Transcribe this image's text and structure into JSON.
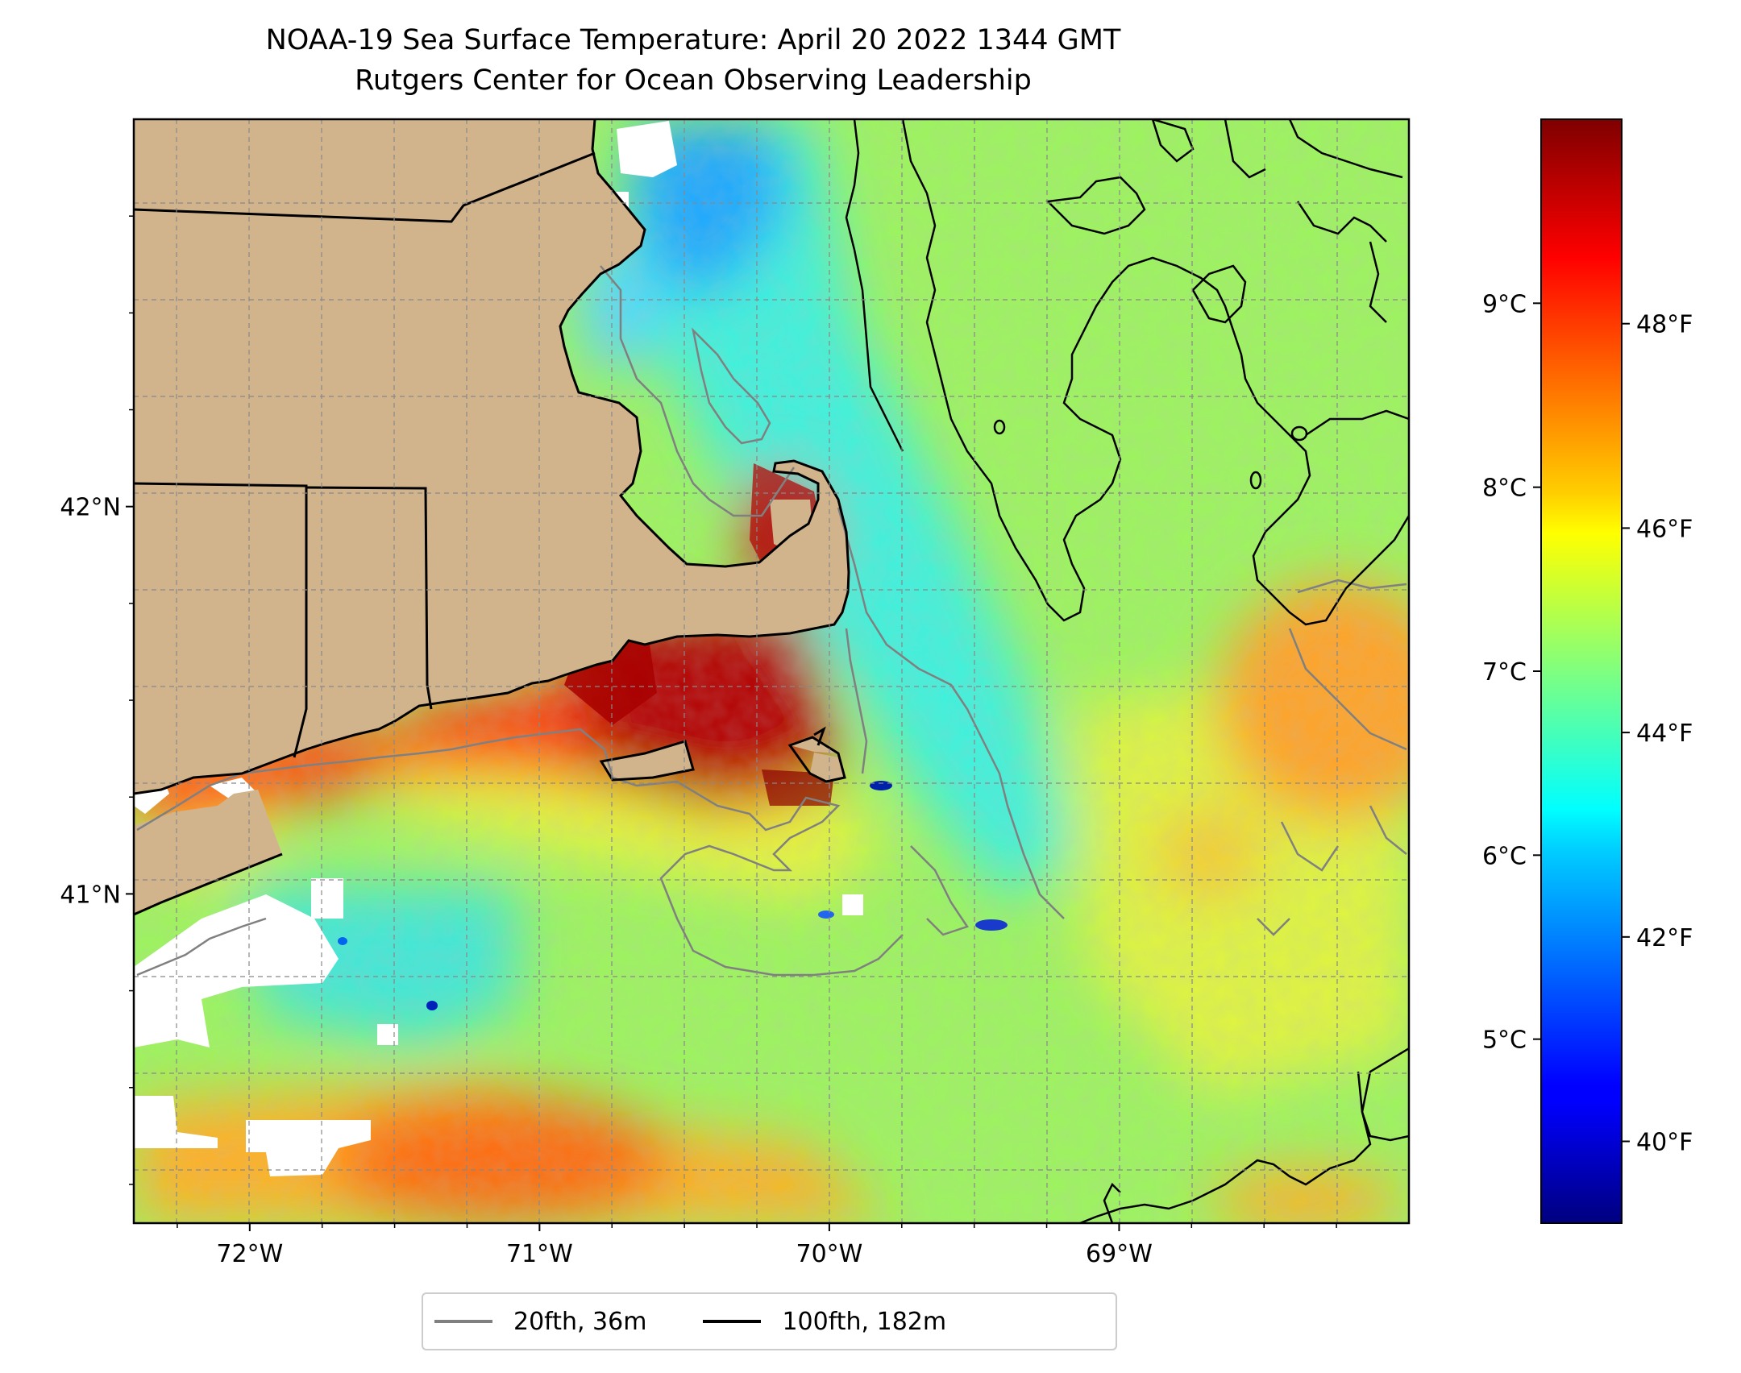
{
  "title_line1": "NOAA-19 Sea Surface Temperature: April 20 2022 1344 GMT",
  "title_line2": "Rutgers Center for Ocean Observing Leadership",
  "map": {
    "lon_range": [
      -72.4,
      -68.0
    ],
    "lat_range": [
      40.15,
      43.0
    ],
    "lon_ticks": [
      {
        "value": -72,
        "label": "72°W"
      },
      {
        "value": -71,
        "label": "71°W"
      },
      {
        "value": -70,
        "label": "70°W"
      },
      {
        "value": -69,
        "label": "69°W"
      }
    ],
    "lat_ticks": [
      {
        "value": 42,
        "label": "42°N"
      },
      {
        "value": 41,
        "label": "41°N"
      }
    ],
    "grid": true,
    "land_color": "#d2b48c",
    "cloud_mask_color": "#ffffff"
  },
  "colorbar": {
    "colormap": "jet",
    "celsius_range": [
      4.0,
      10.0
    ],
    "celsius_ticks": [
      {
        "value": 5,
        "label": "5°C"
      },
      {
        "value": 6,
        "label": "6°C"
      },
      {
        "value": 7,
        "label": "7°C"
      },
      {
        "value": 8,
        "label": "8°C"
      },
      {
        "value": 9,
        "label": "9°C"
      }
    ],
    "fahrenheit_ticks": [
      {
        "value": 40,
        "label": "40°F"
      },
      {
        "value": 42,
        "label": "42°F"
      },
      {
        "value": 44,
        "label": "44°F"
      },
      {
        "value": 46,
        "label": "46°F"
      },
      {
        "value": 48,
        "label": "48°F"
      }
    ]
  },
  "legend": {
    "items": [
      {
        "label": "20fth, 36m",
        "color": "#808080"
      },
      {
        "label": "100fth, 182m",
        "color": "#000000"
      }
    ]
  }
}
